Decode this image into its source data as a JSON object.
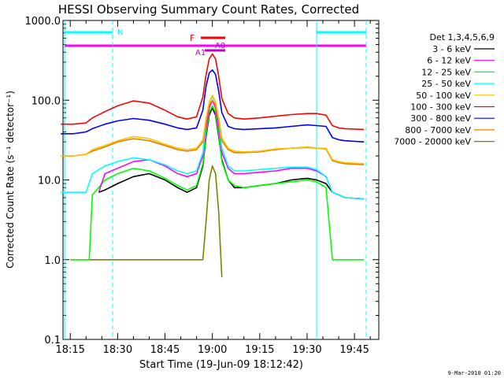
{
  "chart_data": {
    "type": "line",
    "title": "HESSI Observing Summary Count Rates, Corrected",
    "xlabel": "Start Time (19-Jun-09 18:12:42)",
    "ylabel": "Corrected Count Rate (s⁻¹ detector⁻¹)",
    "yscale": "log",
    "ylim": [
      0.1,
      1000
    ],
    "xlim": [
      "18:12",
      "19:52"
    ],
    "ytick_labels": [
      "0.1",
      "1.0",
      "10.0",
      "100.0",
      "1000.0"
    ],
    "ytick_values": [
      0.1,
      1,
      10,
      100,
      1000
    ],
    "xtick_labels": [
      "18:15",
      "18:30",
      "18:45",
      "19:00",
      "19:15",
      "19:30",
      "19:45"
    ],
    "xtick_minutes": [
      1095,
      1110,
      1125,
      1140,
      1155,
      1170,
      1185
    ],
    "legend_title": "Det 1,3,4,5,6,9",
    "legend_position": "right",
    "grid": false,
    "series": [
      {
        "name": "3 - 6 keV",
        "color": "#000000",
        "x": [
          1104,
          1106,
          1110,
          1115,
          1120,
          1125,
          1129,
          1132,
          1135,
          1137,
          1138,
          1139,
          1140,
          1141,
          1142,
          1143,
          1145,
          1147,
          1150,
          1155,
          1160,
          1165,
          1170,
          1173,
          1176,
          1178,
          1180,
          1182,
          1188
        ],
        "y": [
          7,
          7.5,
          9,
          11,
          12,
          10,
          8,
          7,
          8,
          15,
          35,
          65,
          80,
          65,
          35,
          18,
          10,
          8,
          8,
          8.5,
          9,
          10,
          10.5,
          10,
          9,
          7,
          6.5,
          6,
          5.8
        ]
      },
      {
        "name": "6 - 12 keV",
        "color": "#ff00ff",
        "x": [
          1104,
          1106,
          1110,
          1115,
          1120,
          1125,
          1129,
          1132,
          1135,
          1137,
          1138,
          1139,
          1140,
          1141,
          1142,
          1143,
          1145,
          1147,
          1150,
          1155,
          1160,
          1165,
          1170,
          1173,
          1176,
          1178,
          1180,
          1182,
          1188
        ],
        "y": [
          7,
          12,
          14,
          17,
          18,
          15,
          12,
          11,
          12,
          20,
          45,
          80,
          100,
          80,
          45,
          22,
          14,
          12,
          12,
          12.5,
          13,
          14,
          14,
          13,
          11,
          7,
          6.5,
          6,
          5.8
        ]
      },
      {
        "name": "12 - 25 keV",
        "color": "#00ff00",
        "x": [
          1095,
          1101,
          1102,
          1104,
          1106,
          1110,
          1115,
          1120,
          1125,
          1129,
          1132,
          1135,
          1137,
          1138,
          1139,
          1140,
          1141,
          1142,
          1143,
          1145,
          1147,
          1150,
          1155,
          1160,
          1165,
          1170,
          1173,
          1176,
          1178,
          1180,
          1182,
          1188
        ],
        "y": [
          1,
          1,
          6.5,
          8,
          10,
          12,
          14,
          13,
          10.5,
          8.5,
          7.5,
          8.5,
          16,
          38,
          70,
          85,
          70,
          38,
          17,
          10,
          8.5,
          8,
          8.5,
          9,
          9.5,
          10,
          9.5,
          8,
          1,
          1,
          1,
          1
        ]
      },
      {
        "name": "25 - 50 keV",
        "color": "#00ffff",
        "x": [
          1092,
          1096,
          1100,
          1102,
          1106,
          1110,
          1115,
          1120,
          1125,
          1129,
          1132,
          1135,
          1137,
          1138,
          1139,
          1140,
          1141,
          1142,
          1143,
          1145,
          1147,
          1150,
          1155,
          1160,
          1165,
          1170,
          1173,
          1176,
          1178,
          1180,
          1182,
          1188
        ],
        "y": [
          7,
          7,
          7,
          12,
          15,
          17,
          19,
          18,
          15.5,
          13,
          12,
          13,
          22,
          55,
          95,
          110,
          95,
          55,
          25,
          15,
          13,
          13,
          13.5,
          14,
          14.5,
          14.5,
          13.5,
          11,
          7,
          6.5,
          6,
          5.8
        ]
      },
      {
        "name": "50 - 100 keV",
        "color": "#ffc000",
        "x": [
          1092,
          1096,
          1100,
          1102,
          1106,
          1110,
          1115,
          1120,
          1125,
          1129,
          1132,
          1135,
          1137,
          1138,
          1139,
          1140,
          1141,
          1142,
          1143,
          1145,
          1147,
          1150,
          1155,
          1160,
          1165,
          1170,
          1173,
          1176,
          1178,
          1180,
          1182,
          1188
        ],
        "y": [
          20,
          20,
          21,
          24,
          27,
          31,
          35,
          33,
          28,
          25,
          24,
          25,
          32,
          60,
          95,
          115,
          95,
          60,
          34,
          25,
          23,
          22.5,
          23,
          24.5,
          25,
          26,
          25,
          25,
          18,
          17,
          16.5,
          16
        ]
      },
      {
        "name": "100 - 300 keV",
        "color": "#ff0000",
        "x": [
          1092,
          1096,
          1100,
          1102,
          1106,
          1110,
          1115,
          1120,
          1125,
          1129,
          1132,
          1135,
          1137,
          1138,
          1139,
          1140,
          1141,
          1142,
          1143,
          1145,
          1147,
          1150,
          1155,
          1160,
          1165,
          1170,
          1173,
          1176,
          1178,
          1180,
          1182,
          1188
        ],
        "y": [
          50,
          50,
          52,
          60,
          72,
          85,
          98,
          92,
          75,
          62,
          58,
          62,
          110,
          210,
          330,
          380,
          330,
          200,
          105,
          68,
          60,
          58,
          60,
          63,
          66,
          68,
          68,
          65,
          48,
          45,
          44,
          43
        ]
      },
      {
        "name": "300 - 800 keV",
        "color": "#0000ff",
        "x": [
          1092,
          1096,
          1100,
          1102,
          1106,
          1110,
          1115,
          1120,
          1125,
          1129,
          1132,
          1135,
          1137,
          1138,
          1139,
          1140,
          1141,
          1142,
          1143,
          1145,
          1147,
          1150,
          1155,
          1160,
          1165,
          1170,
          1173,
          1176,
          1178,
          1180,
          1182,
          1188
        ],
        "y": [
          38,
          38,
          40,
          44,
          50,
          55,
          59,
          56,
          50,
          45,
          43,
          45,
          75,
          150,
          220,
          240,
          210,
          130,
          70,
          47,
          44,
          43,
          44,
          45,
          47,
          49,
          48,
          47,
          34,
          32,
          31,
          30
        ]
      },
      {
        "name": "800 - 7000 keV",
        "color": "#e08000",
        "x": [
          1092,
          1096,
          1100,
          1102,
          1106,
          1110,
          1115,
          1120,
          1125,
          1129,
          1132,
          1135,
          1137,
          1138,
          1139,
          1140,
          1141,
          1142,
          1143,
          1145,
          1147,
          1150,
          1155,
          1160,
          1165,
          1170,
          1173,
          1176,
          1178,
          1180,
          1182,
          1188
        ],
        "y": [
          20,
          20,
          21,
          23,
          26,
          30,
          33,
          31,
          27,
          24,
          23,
          24,
          30,
          55,
          88,
          100,
          88,
          55,
          31,
          24,
          22,
          22,
          22.5,
          24,
          25,
          25.5,
          25,
          24.5,
          17.5,
          16.5,
          16,
          15.5
        ]
      },
      {
        "name": "7000 - 20000 keV",
        "color": "#808000",
        "x": [
          1095,
          1137,
          1138,
          1139,
          1140,
          1141,
          1142,
          1143
        ],
        "y": [
          1,
          1,
          3,
          10,
          15,
          12,
          4,
          0.6
        ]
      }
    ],
    "annotations": {
      "night_label": "N",
      "flare_label": "F",
      "attenuator_labels": [
        "A1",
        "A0"
      ]
    }
  }
}
